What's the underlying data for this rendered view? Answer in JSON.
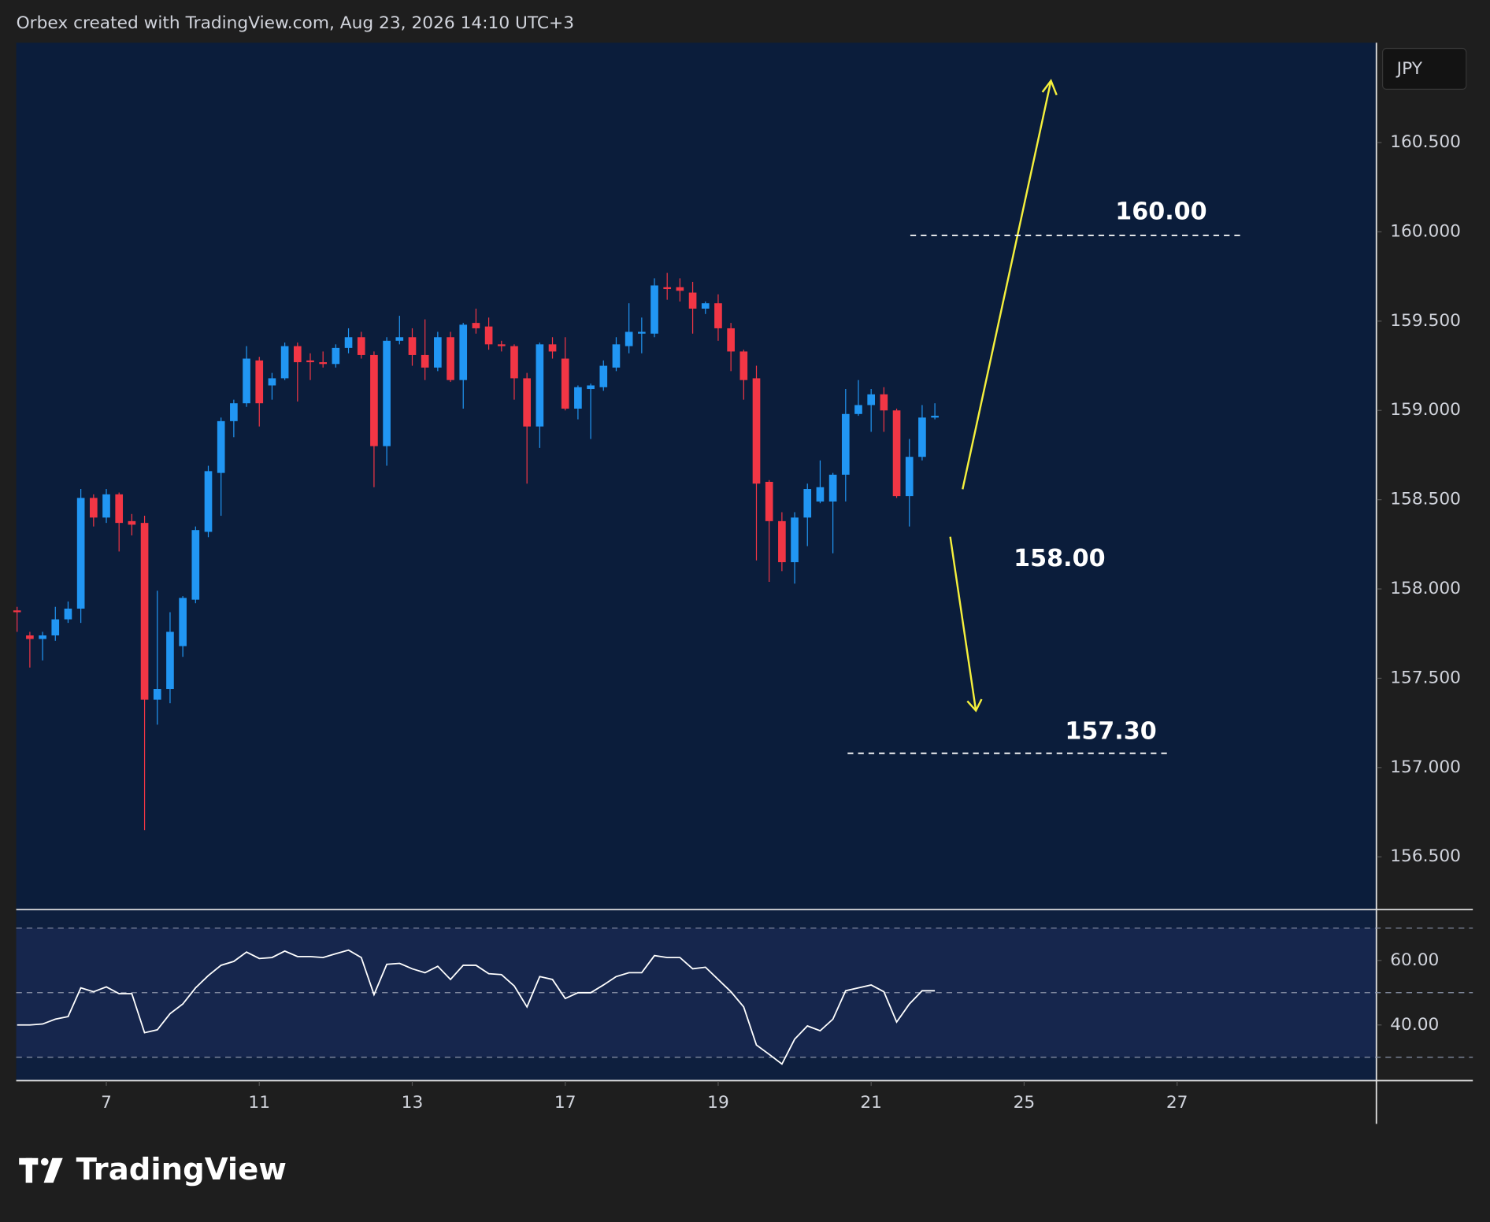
{
  "header": "Orbex created with TradingView.com, Aug 23, 2026 14:10 UTC+3",
  "currency": "JPY",
  "logo": "TradingView",
  "chart_data": [
    {
      "type": "candlestick",
      "up_color": "#2196f3",
      "down_color": "#f23645",
      "open": [
        157.88,
        157.74,
        157.72,
        157.74,
        157.83,
        157.89,
        158.51,
        158.4,
        158.53,
        158.38,
        158.37,
        157.38,
        157.44,
        157.68,
        157.94,
        158.32,
        158.65,
        158.94,
        159.04,
        159.28,
        159.14,
        159.18,
        159.36,
        159.28,
        159.27,
        159.26,
        159.35,
        159.41,
        159.31,
        158.8,
        159.39,
        159.41,
        159.31,
        159.24,
        159.41,
        159.17,
        159.49,
        159.47,
        159.37,
        159.36,
        159.18,
        158.91,
        159.37,
        159.29,
        159.01,
        159.12,
        159.13,
        159.24,
        159.36,
        159.43,
        159.43,
        159.69,
        159.69,
        159.66,
        159.57,
        159.6,
        159.46,
        159.33,
        159.18,
        158.6,
        158.38,
        158.15,
        158.4,
        158.49,
        158.49,
        158.64,
        158.98,
        159.03,
        159.09,
        159.0,
        158.52,
        158.74,
        158.96
      ],
      "high": [
        157.9,
        157.76,
        157.76,
        157.9,
        157.93,
        158.56,
        158.53,
        158.56,
        158.54,
        158.42,
        158.41,
        157.99,
        157.87,
        157.96,
        158.35,
        158.69,
        158.96,
        159.06,
        159.36,
        159.3,
        159.21,
        159.38,
        159.38,
        159.32,
        159.33,
        159.37,
        159.46,
        159.44,
        159.33,
        159.41,
        159.53,
        159.46,
        159.51,
        159.44,
        159.44,
        159.49,
        159.57,
        159.52,
        159.39,
        159.37,
        159.21,
        159.38,
        159.41,
        159.41,
        159.14,
        159.15,
        159.28,
        159.41,
        159.6,
        159.52,
        159.74,
        159.77,
        159.74,
        159.72,
        159.61,
        159.65,
        159.49,
        159.34,
        159.25,
        158.61,
        158.43,
        158.43,
        158.59,
        158.72,
        158.65,
        159.12,
        159.17,
        159.12,
        159.13,
        159.01,
        158.84,
        159.03,
        159.04
      ],
      "low": [
        157.76,
        157.56,
        157.6,
        157.71,
        157.81,
        157.81,
        158.35,
        158.37,
        158.21,
        158.3,
        156.65,
        157.24,
        157.36,
        157.62,
        157.92,
        158.29,
        158.41,
        158.85,
        159.02,
        158.91,
        159.06,
        159.17,
        159.05,
        159.17,
        159.24,
        159.24,
        159.32,
        159.29,
        158.57,
        158.69,
        159.37,
        159.25,
        159.17,
        159.22,
        159.16,
        159.01,
        159.43,
        159.34,
        159.33,
        159.06,
        158.59,
        158.79,
        159.29,
        159.0,
        158.95,
        158.84,
        159.11,
        159.22,
        159.32,
        159.32,
        159.41,
        159.62,
        159.61,
        159.43,
        159.54,
        159.39,
        159.22,
        159.06,
        158.16,
        158.04,
        158.1,
        158.03,
        158.24,
        158.48,
        158.2,
        158.49,
        158.97,
        158.88,
        158.88,
        158.51,
        158.35,
        158.72,
        158.95
      ],
      "close": [
        157.87,
        157.72,
        157.74,
        157.83,
        157.89,
        158.51,
        158.4,
        158.53,
        158.37,
        158.36,
        157.38,
        157.44,
        157.76,
        157.95,
        158.33,
        158.66,
        158.94,
        159.04,
        159.29,
        159.04,
        159.18,
        159.36,
        159.27,
        159.27,
        159.26,
        159.35,
        159.41,
        159.31,
        158.8,
        159.39,
        159.41,
        159.31,
        159.24,
        159.41,
        159.17,
        159.48,
        159.46,
        159.37,
        159.36,
        159.18,
        158.91,
        159.37,
        159.33,
        159.01,
        159.13,
        159.14,
        159.25,
        159.37,
        159.44,
        159.44,
        159.7,
        159.68,
        159.67,
        159.57,
        159.6,
        159.46,
        159.33,
        159.17,
        158.59,
        158.38,
        158.15,
        158.4,
        158.56,
        158.57,
        158.64,
        158.98,
        159.03,
        159.09,
        159.0,
        158.52,
        158.74,
        158.96,
        158.97
      ],
      "xlim": [
        -0.07,
        106.6
      ],
      "ylim": [
        156.207,
        161.059
      ],
      "yticks": [
        {
          "value": 156.5,
          "label": "156.500"
        },
        {
          "value": 157,
          "label": "157.000"
        },
        {
          "value": 157.5,
          "label": "157.500"
        },
        {
          "value": 158,
          "label": "158.000"
        },
        {
          "value": 158.5,
          "label": "158.500"
        },
        {
          "value": 159,
          "label": "159.000"
        },
        {
          "value": 159.5,
          "label": "159.500"
        },
        {
          "value": 160,
          "label": "160.000"
        },
        {
          "value": 160.5,
          "label": "160.500"
        }
      ],
      "annotations": [
        {
          "text": "160.00",
          "price": 159.98
        },
        {
          "text": "157.30",
          "price": 157.08
        },
        {
          "text": "158.00"
        }
      ]
    },
    {
      "type": "line",
      "color": "#ffffff",
      "values": [
        40.0,
        40.0,
        40.3,
        41.8,
        42.6,
        51.5,
        50.3,
        51.8,
        49.7,
        49.7,
        37.6,
        38.5,
        43.5,
        46.5,
        51.5,
        55.3,
        58.5,
        59.7,
        62.6,
        60.6,
        60.9,
        62.9,
        61.2,
        61.2,
        60.9,
        62.1,
        63.2,
        60.9,
        49.4,
        58.8,
        59.1,
        57.4,
        56.2,
        58.2,
        54.1,
        58.5,
        58.5,
        55.9,
        55.6,
        52.1,
        45.6,
        55.0,
        54.1,
        48.2,
        50.0,
        50.0,
        52.4,
        55.0,
        56.2,
        56.2,
        61.5,
        60.9,
        60.9,
        57.4,
        57.9,
        54.1,
        50.3,
        45.6,
        33.8,
        30.9,
        27.9,
        35.6,
        39.7,
        38.2,
        41.8,
        50.6,
        51.5,
        52.4,
        50.3,
        40.9,
        46.5,
        50.6,
        50.6
      ],
      "xlim": [
        -0.07,
        106.6
      ],
      "ylim": [
        22.9,
        75.6
      ],
      "yticks": [
        {
          "value": 40,
          "label": "40.00"
        },
        {
          "value": 60,
          "label": "60.00"
        }
      ],
      "bands": [
        70,
        50,
        30
      ],
      "xticks": [
        {
          "value": 7,
          "label": "7"
        },
        {
          "value": 19,
          "label": "11"
        },
        {
          "value": 31,
          "label": "13"
        },
        {
          "value": 43,
          "label": "17"
        },
        {
          "value": 55,
          "label": "19"
        },
        {
          "value": 67,
          "label": "21"
        },
        {
          "value": 79,
          "label": "25"
        },
        {
          "value": 91,
          "label": "27"
        }
      ]
    }
  ]
}
